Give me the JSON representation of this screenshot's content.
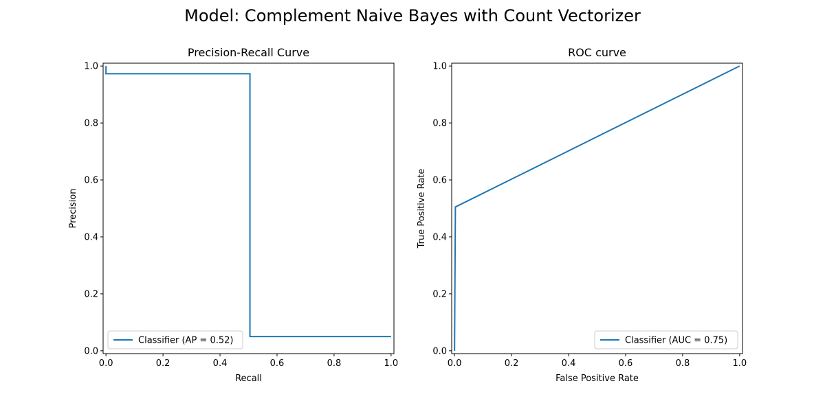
{
  "figure": {
    "suptitle": "Model: Complement Naive Bayes with Count Vectorizer"
  },
  "colors": {
    "series": "#1f77b4",
    "axes": "#000000",
    "legend_border": "#cccccc"
  },
  "chart_data": [
    {
      "type": "line",
      "title": "Precision-Recall Curve",
      "xlabel": "Recall",
      "ylabel": "Precision",
      "xlim": [
        -0.01,
        1.01
      ],
      "ylim": [
        -0.01,
        1.01
      ],
      "xticks": [
        0.0,
        0.2,
        0.4,
        0.6,
        0.8,
        1.0
      ],
      "yticks": [
        0.0,
        0.2,
        0.4,
        0.6,
        0.8,
        1.0
      ],
      "xtick_labels": [
        "0.0",
        "0.2",
        "0.4",
        "0.6",
        "0.8",
        "1.0"
      ],
      "ytick_labels": [
        "0.0",
        "0.2",
        "0.4",
        "0.6",
        "0.8",
        "1.0"
      ],
      "grid": false,
      "legend_position": "lower-left",
      "series": [
        {
          "name": "Classifier (AP = 0.52)",
          "step": true,
          "points": [
            [
              0.0,
              1.0
            ],
            [
              0.0,
              0.973
            ],
            [
              0.505,
              0.973
            ],
            [
              0.505,
              0.05
            ],
            [
              1.0,
              0.05
            ]
          ]
        }
      ]
    },
    {
      "type": "line",
      "title": "ROC curve",
      "xlabel": "False Positive Rate",
      "ylabel": "True Positive Rate",
      "xlim": [
        -0.01,
        1.01
      ],
      "ylim": [
        -0.01,
        1.01
      ],
      "xticks": [
        0.0,
        0.2,
        0.4,
        0.6,
        0.8,
        1.0
      ],
      "yticks": [
        0.0,
        0.2,
        0.4,
        0.6,
        0.8,
        1.0
      ],
      "xtick_labels": [
        "0.0",
        "0.2",
        "0.4",
        "0.6",
        "0.8",
        "1.0"
      ],
      "ytick_labels": [
        "0.0",
        "0.2",
        "0.4",
        "0.6",
        "0.8",
        "1.0"
      ],
      "grid": false,
      "legend_position": "lower-right",
      "series": [
        {
          "name": "Classifier (AUC = 0.75)",
          "step": false,
          "points": [
            [
              0.0,
              0.0
            ],
            [
              0.0,
              0.0
            ],
            [
              0.003,
              0.505
            ],
            [
              1.0,
              1.0
            ]
          ]
        }
      ]
    }
  ]
}
